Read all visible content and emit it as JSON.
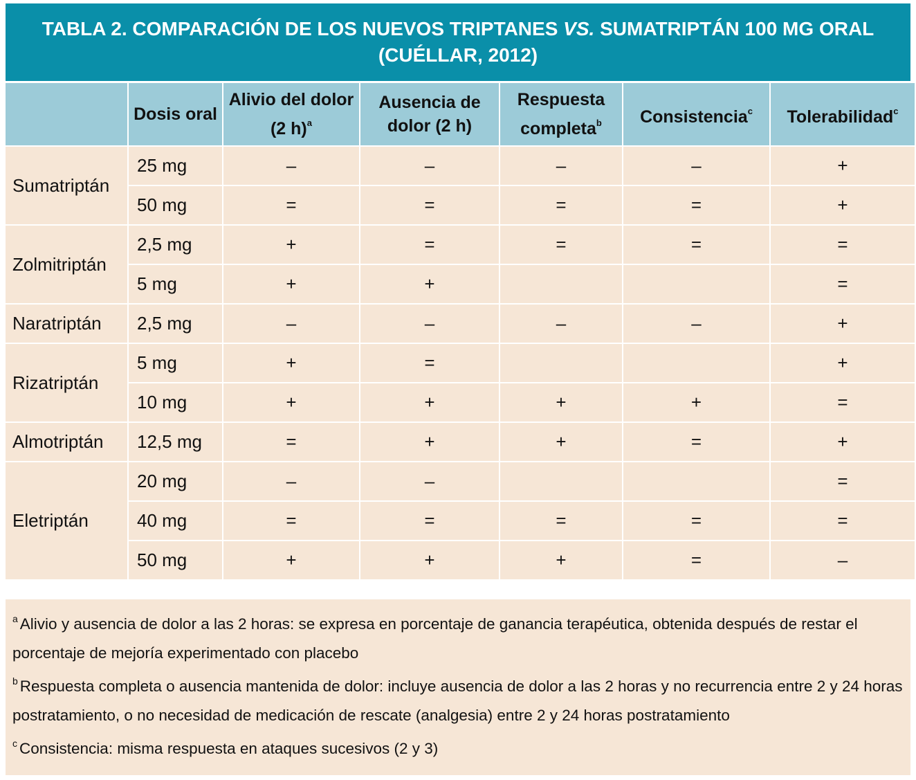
{
  "header": {
    "title_parts": [
      "TABLA 2. COMPARACIÓN DE LOS NUEVOS TRIPTANES",
      "VS.",
      "SUMATRIPTÁN 100 MG ORAL (CUÉLLAR, 2012)"
    ]
  },
  "table": {
    "columns": [
      {
        "text": "Dosis oral"
      },
      {
        "text": "Alivio del dolor (2 h)",
        "sup": "a"
      },
      {
        "text": "Ausencia de dolor (2 h)"
      },
      {
        "text": "Respuesta completa",
        "sup": "b"
      },
      {
        "text": "Consistencia",
        "sup": "c"
      },
      {
        "text": "Tolerabilidad",
        "sup": "c"
      }
    ],
    "groups": [
      {
        "drug": "Sumatriptán",
        "rows": [
          {
            "dose": "25 mg",
            "values": [
              "–",
              "–",
              "–",
              "–",
              "+"
            ]
          },
          {
            "dose": "50 mg",
            "values": [
              "=",
              "=",
              "=",
              "=",
              "+"
            ]
          }
        ]
      },
      {
        "drug": "Zolmitriptán",
        "rows": [
          {
            "dose": "2,5 mg",
            "values": [
              "+",
              "=",
              "=",
              "=",
              "="
            ]
          },
          {
            "dose": "5 mg",
            "values": [
              "+",
              "+",
              null,
              null,
              "="
            ]
          }
        ]
      },
      {
        "drug": "Naratriptán",
        "rows": [
          {
            "dose": "2,5 mg",
            "values": [
              "–",
              "–",
              "–",
              "–",
              "+"
            ]
          }
        ]
      },
      {
        "drug": "Rizatriptán",
        "rows": [
          {
            "dose": "5 mg",
            "values": [
              "+",
              "=",
              null,
              null,
              "+"
            ]
          },
          {
            "dose": "10 mg",
            "values": [
              "+",
              "+",
              "+",
              "+",
              "="
            ]
          }
        ]
      },
      {
        "drug": "Almotriptán",
        "rows": [
          {
            "dose": "12,5 mg",
            "values": [
              "=",
              "+",
              "+",
              "=",
              "+"
            ]
          }
        ]
      },
      {
        "drug": "Eletriptán",
        "rows": [
          {
            "dose": "20 mg",
            "values": [
              "–",
              "–",
              null,
              null,
              "="
            ]
          },
          {
            "dose": "40 mg",
            "values": [
              "=",
              "=",
              "=",
              "=",
              "="
            ]
          },
          {
            "dose": "50 mg",
            "values": [
              "+",
              "+",
              "+",
              "=",
              "–"
            ]
          }
        ]
      }
    ]
  },
  "footnotes": [
    {
      "mark": "a",
      "text": "Alivio y ausencia de dolor a las 2 horas: se expresa en porcentaje de ganancia terapéutica, obtenida después de restar el porcentaje de mejoría experimentado con placebo"
    },
    {
      "mark": "b",
      "text": "Respuesta completa o ausencia mantenida de dolor: incluye ausencia de dolor a las 2 horas y no recurrencia entre 2 y 24 horas postratamiento, o no necesidad de medicación de rescate (analgesia) entre 2 y 24 horas postratamiento"
    },
    {
      "mark": "c",
      "text": "Consistencia: misma respuesta en ataques sucesivos (2 y 3)"
    }
  ]
}
